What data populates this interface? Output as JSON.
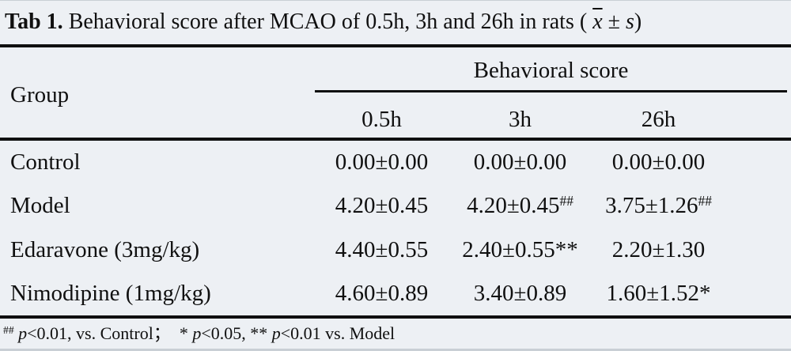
{
  "colors": {
    "background": "#edf0f4",
    "rule": "#101010",
    "edge": "#c9cfd5"
  },
  "title": {
    "tag": "Tab 1.",
    "text": "Behavioral score after MCAO of 0.5h, 3h and 26h in rats (",
    "xbar": "x",
    "pm": "±",
    "s": "s",
    "close": ")"
  },
  "table": {
    "group_header": "Group",
    "span_header": "Behavioral score",
    "time_columns": [
      "0.5h",
      "3h",
      "26h"
    ],
    "rows": [
      {
        "group": "Control",
        "values": [
          {
            "v": "0.00±0.00"
          },
          {
            "v": "0.00±0.00"
          },
          {
            "v": "0.00±0.00"
          }
        ]
      },
      {
        "group": "Model",
        "values": [
          {
            "v": "4.20±0.45"
          },
          {
            "v": "4.20±0.45",
            "sup": "##"
          },
          {
            "v": "3.75±1.26",
            "sup": "##"
          }
        ]
      },
      {
        "group": "Edaravone (3mg/kg)",
        "values": [
          {
            "v": "4.40±0.55"
          },
          {
            "v": "2.40±0.55**"
          },
          {
            "v": "2.20±1.30"
          }
        ]
      },
      {
        "group": "Nimodipine (1mg/kg)",
        "values": [
          {
            "v": "4.60±0.89"
          },
          {
            "v": "3.40±0.89"
          },
          {
            "v": "1.60±1.52*"
          }
        ]
      }
    ]
  },
  "footnote": {
    "sup": "##",
    "s1": " ",
    "p": "p",
    "s2": "<0.01, vs. Control；",
    "s3": "  * ",
    "s4": "<0.05, ** ",
    "s5": "<0.01 vs. Model"
  }
}
